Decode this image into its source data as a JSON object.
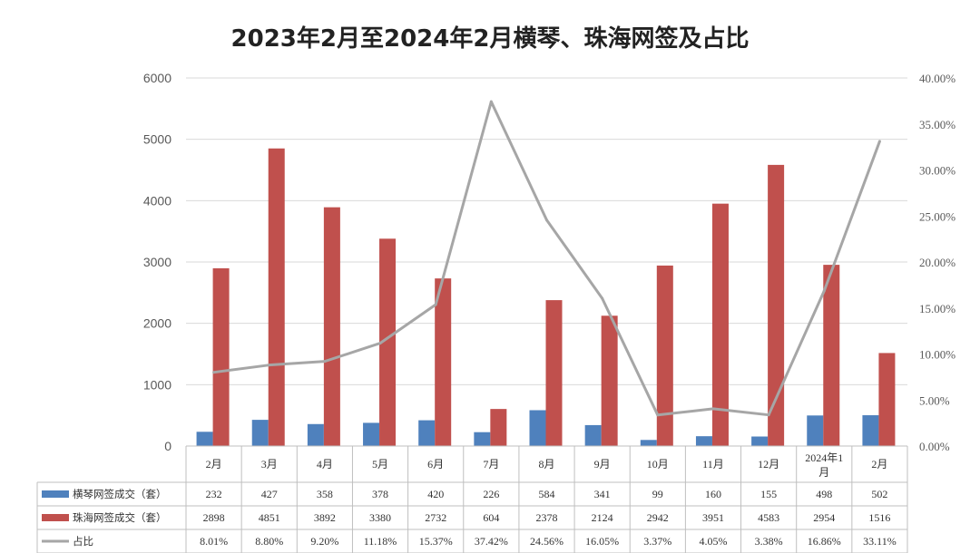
{
  "chart_data": {
    "type": "bar",
    "title": "2023年2月至2024年2月横琴、珠海网签及占比",
    "categories": [
      "2月",
      "3月",
      "4月",
      "5月",
      "6月",
      "7月",
      "8月",
      "9月",
      "10月",
      "11月",
      "12月",
      "2024年1月",
      "2月"
    ],
    "series": [
      {
        "name": "横琴网签成交（套）",
        "type": "bar",
        "axis": "left",
        "color": "#4f81bd",
        "values": [
          232,
          427,
          358,
          378,
          420,
          226,
          584,
          341,
          99,
          160,
          155,
          498,
          502
        ],
        "labels": [
          "232",
          "427",
          "358",
          "378",
          "420",
          "226",
          "584",
          "341",
          "99",
          "160",
          "155",
          "498",
          "502"
        ]
      },
      {
        "name": "珠海网签成交（套）",
        "type": "bar",
        "axis": "left",
        "color": "#c0504d",
        "values": [
          2898,
          4851,
          3892,
          3380,
          2732,
          604,
          2378,
          2124,
          2942,
          3951,
          4583,
          2954,
          1516
        ],
        "labels": [
          "2898",
          "4851",
          "3892",
          "3380",
          "2732",
          "604",
          "2378",
          "2124",
          "2942",
          "3951",
          "4583",
          "2954",
          "1516"
        ]
      },
      {
        "name": "占比",
        "type": "line",
        "axis": "right",
        "color": "#a6a6a6",
        "values": [
          8.01,
          8.8,
          9.2,
          11.18,
          15.37,
          37.42,
          24.56,
          16.05,
          3.37,
          4.05,
          3.38,
          16.86,
          33.11
        ],
        "labels": [
          "8.01%",
          "8.80%",
          "9.20%",
          "11.18%",
          "15.37%",
          "37.42%",
          "24.56%",
          "16.05%",
          "3.37%",
          "4.05%",
          "3.38%",
          "16.86%",
          "33.11%"
        ]
      }
    ],
    "y_left": {
      "min": 0,
      "max": 6000,
      "ticks": [
        "0",
        "1000",
        "2000",
        "3000",
        "4000",
        "5000",
        "6000"
      ]
    },
    "y_right": {
      "min": 0,
      "max": 40,
      "ticks": [
        "0.00%",
        "5.00%",
        "10.00%",
        "15.00%",
        "20.00%",
        "25.00%",
        "30.00%",
        "35.00%",
        "40.00%"
      ]
    },
    "grid": true,
    "legend": "data-table-left"
  }
}
